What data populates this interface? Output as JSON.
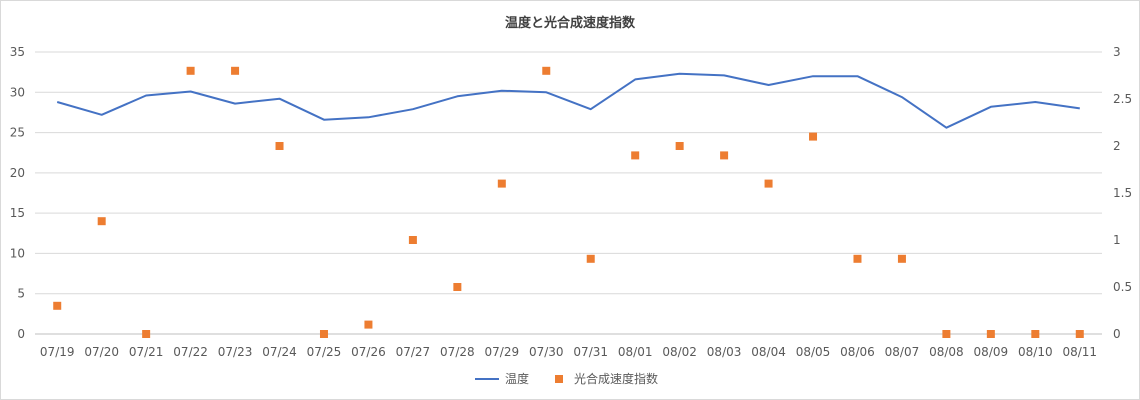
{
  "chart_data": {
    "type": "line",
    "title": "温度と光合成速度指数",
    "categories": [
      "07/19",
      "07/20",
      "07/21",
      "07/22",
      "07/23",
      "07/24",
      "07/25",
      "07/26",
      "07/27",
      "07/28",
      "07/29",
      "07/30",
      "07/31",
      "08/01",
      "08/02",
      "08/03",
      "08/04",
      "08/05",
      "08/06",
      "08/07",
      "08/08",
      "08/09",
      "08/10",
      "08/11"
    ],
    "series": [
      {
        "name": "温度",
        "type": "line",
        "axis": "left",
        "color": "#4472C4",
        "values": [
          28.8,
          27.2,
          29.6,
          30.1,
          28.6,
          29.2,
          26.6,
          26.9,
          27.9,
          29.5,
          30.2,
          30.0,
          27.9,
          31.6,
          32.3,
          32.1,
          30.9,
          32.0,
          32.0,
          29.4,
          25.6,
          28.2,
          28.8,
          28.0
        ]
      },
      {
        "name": "光合成速度指数",
        "type": "scatter",
        "axis": "right",
        "color": "#ED7D31",
        "values": [
          0.3,
          1.2,
          0.0,
          2.8,
          2.8,
          2.0,
          0.0,
          0.1,
          1.0,
          0.5,
          1.6,
          2.8,
          0.8,
          1.9,
          2.0,
          1.9,
          1.6,
          2.1,
          0.8,
          0.8,
          0.0,
          0.0,
          0.0,
          0.0
        ]
      }
    ],
    "y_left": {
      "ylim": [
        0,
        35
      ],
      "ticks": [
        "0",
        "5",
        "10",
        "15",
        "20",
        "25",
        "30",
        "35"
      ]
    },
    "y_right": {
      "ylim": [
        0,
        3
      ],
      "ticks": [
        "0",
        "0.5",
        "1",
        "1.5",
        "2",
        "2.5",
        "3"
      ]
    },
    "grid": true,
    "legend_position": "bottom"
  }
}
